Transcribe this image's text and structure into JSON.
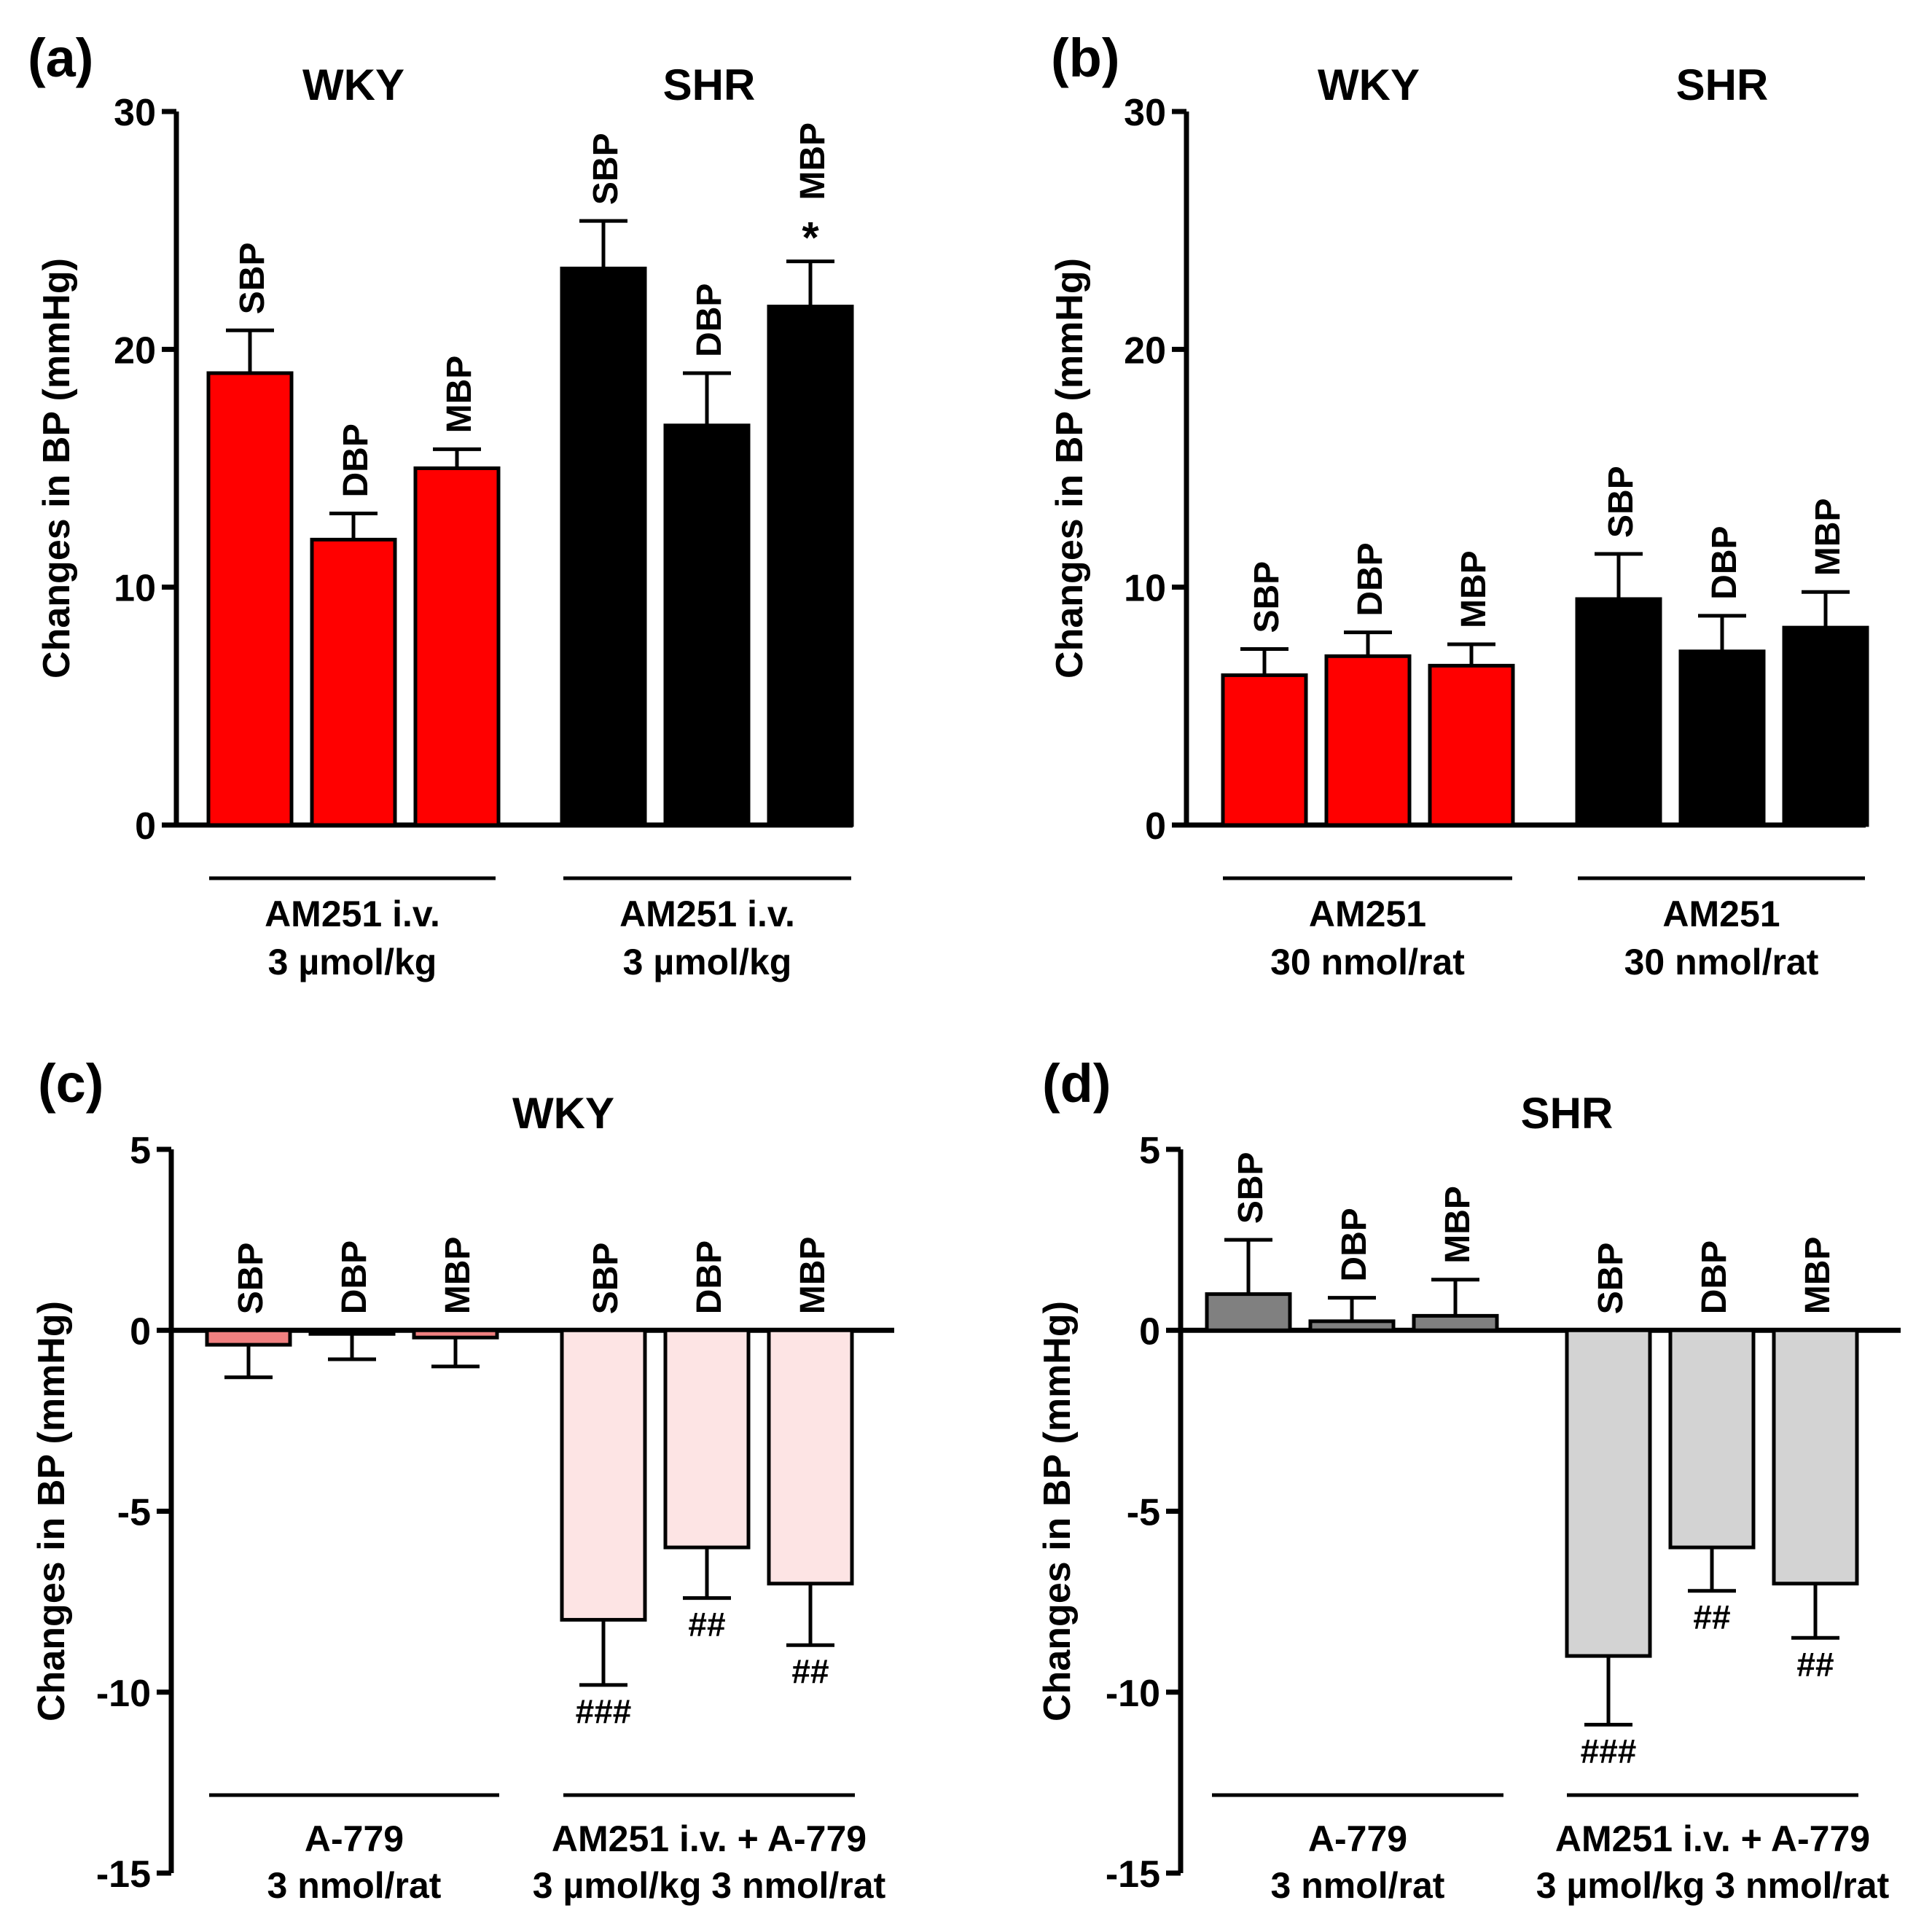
{
  "figure": {
    "colors": {
      "wky_main": "#ff0000",
      "shr_main": "#000000",
      "wky_a779": "#f08080",
      "wky_combo": "#fde4e4",
      "shr_a779": "#808080",
      "shr_combo": "#d3d3d3",
      "axis": "#000000"
    }
  },
  "chart_data": [
    {
      "id": "a",
      "type": "bar",
      "panel_label": "(a)",
      "ylabel": "Changes in BP (mmHg)",
      "ylim": [
        0,
        30
      ],
      "yticks": [
        0,
        10,
        20,
        30
      ],
      "group_titles": [
        "WKY",
        "SHR"
      ],
      "groups": [
        {
          "label_lines": [
            "AM251 i.v.",
            "3 µmol/kg"
          ],
          "color_key": "wky_main",
          "bars": [
            {
              "label": "SBP",
              "value": 19.0,
              "error": 1.8,
              "mark": ""
            },
            {
              "label": "DBP",
              "value": 12.0,
              "error": 1.1,
              "mark": ""
            },
            {
              "label": "MBP",
              "value": 15.0,
              "error": 0.8,
              "mark": ""
            }
          ]
        },
        {
          "label_lines": [
            "AM251 i.v.",
            "3 µmol/kg"
          ],
          "color_key": "shr_main",
          "bars": [
            {
              "label": "SBP",
              "value": 23.4,
              "error": 2.0,
              "mark": ""
            },
            {
              "label": "DBP",
              "value": 16.8,
              "error": 2.2,
              "mark": ""
            },
            {
              "label": "MBP",
              "value": 21.8,
              "error": 1.9,
              "mark": "*"
            }
          ]
        }
      ]
    },
    {
      "id": "b",
      "type": "bar",
      "panel_label": "(b)",
      "ylabel": "Changes in BP (mmHg)",
      "ylim": [
        0,
        30
      ],
      "yticks": [
        0,
        10,
        20,
        30
      ],
      "group_titles": [
        "WKY",
        "SHR"
      ],
      "groups": [
        {
          "label_lines": [
            "AM251",
            "30 nmol/rat"
          ],
          "color_key": "wky_main",
          "bars": [
            {
              "label": "SBP",
              "value": 6.3,
              "error": 1.1,
              "mark": ""
            },
            {
              "label": "DBP",
              "value": 7.1,
              "error": 1.0,
              "mark": ""
            },
            {
              "label": "MBP",
              "value": 6.7,
              "error": 0.9,
              "mark": ""
            }
          ]
        },
        {
          "label_lines": [
            "AM251",
            "30 nmol/rat"
          ],
          "color_key": "shr_main",
          "bars": [
            {
              "label": "SBP",
              "value": 9.5,
              "error": 1.9,
              "mark": ""
            },
            {
              "label": "DBP",
              "value": 7.3,
              "error": 1.5,
              "mark": ""
            },
            {
              "label": "MBP",
              "value": 8.3,
              "error": 1.5,
              "mark": ""
            }
          ]
        }
      ]
    },
    {
      "id": "c",
      "type": "bar",
      "panel_label": "(c)",
      "ylabel": "Changes in BP (mmHg)",
      "ylim": [
        -15,
        5
      ],
      "yticks": [
        -15,
        -10,
        -5,
        0,
        5
      ],
      "group_titles": [
        "WKY"
      ],
      "groups": [
        {
          "label_lines": [
            "A-779",
            "3 nmol/rat"
          ],
          "color_key": "wky_a779",
          "bars": [
            {
              "label": "SBP",
              "value": -0.4,
              "error": 0.9,
              "mark": ""
            },
            {
              "label": "DBP",
              "value": -0.1,
              "error": 0.7,
              "mark": ""
            },
            {
              "label": "MBP",
              "value": -0.2,
              "error": 0.8,
              "mark": ""
            }
          ]
        },
        {
          "label_lines": [
            "AM251 i.v. + A-779",
            "3 µmol/kg  3 nmol/rat"
          ],
          "color_key": "wky_combo",
          "bars": [
            {
              "label": "SBP",
              "value": -8.0,
              "error": 1.8,
              "mark": "###"
            },
            {
              "label": "DBP",
              "value": -6.0,
              "error": 1.4,
              "mark": "##"
            },
            {
              "label": "MBP",
              "value": -7.0,
              "error": 1.7,
              "mark": "##"
            }
          ]
        }
      ]
    },
    {
      "id": "d",
      "type": "bar",
      "panel_label": "(d)",
      "ylabel": "Changes in BP (mmHg)",
      "ylim": [
        -15,
        5
      ],
      "yticks": [
        -15,
        -10,
        -5,
        0,
        5
      ],
      "group_titles": [
        "SHR"
      ],
      "groups": [
        {
          "label_lines": [
            "A-779",
            "3 nmol/rat"
          ],
          "color_key": "shr_a779",
          "bars": [
            {
              "label": "SBP",
              "value": 1.0,
              "error": 1.5,
              "mark": ""
            },
            {
              "label": "DBP",
              "value": 0.25,
              "error": 0.65,
              "mark": ""
            },
            {
              "label": "MBP",
              "value": 0.4,
              "error": 1.0,
              "mark": ""
            }
          ]
        },
        {
          "label_lines": [
            "AM251 i.v. + A-779",
            "3 µmol/kg  3 nmol/rat"
          ],
          "color_key": "shr_combo",
          "bars": [
            {
              "label": "SBP",
              "value": -9.0,
              "error": 1.9,
              "mark": "###"
            },
            {
              "label": "DBP",
              "value": -6.0,
              "error": 1.2,
              "mark": "##"
            },
            {
              "label": "MBP",
              "value": -7.0,
              "error": 1.5,
              "mark": "##"
            }
          ]
        }
      ]
    }
  ]
}
